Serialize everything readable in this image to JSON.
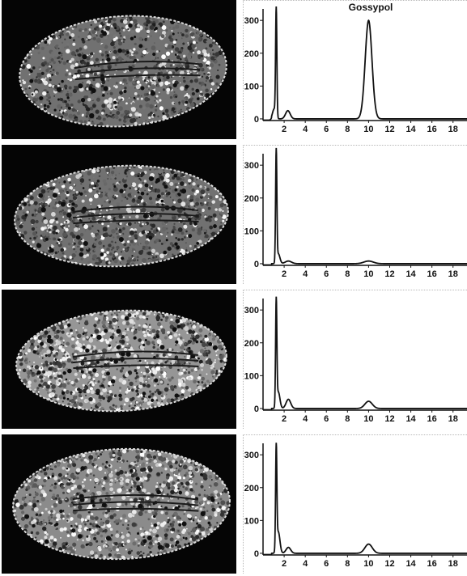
{
  "figure": {
    "colors": {
      "background": "#ffffff",
      "seed_background": "#050505",
      "trace": "#111111",
      "panel_border": "#b8b8b8"
    }
  },
  "chart_data": [
    {
      "type": "line",
      "title": "Gossypol",
      "xlabel": "",
      "ylabel": "",
      "xlim": [
        0,
        19.4
      ],
      "ylim": [
        -10,
        330
      ],
      "x_ticks": [
        2,
        4,
        6,
        8,
        10,
        12,
        14,
        16,
        18
      ],
      "y_ticks": [
        0,
        100,
        200,
        300
      ],
      "grid": false,
      "peaks": [
        {
          "x": 1.25,
          "height": 330,
          "width": 0.06
        },
        {
          "x": 1.05,
          "height": 30,
          "width": 0.15
        },
        {
          "x": 2.35,
          "height": 25,
          "width": 0.22
        },
        {
          "x": 10.0,
          "height": 300,
          "width": 0.32
        }
      ],
      "series": [
        {
          "values_note_free": true
        }
      ]
    },
    {
      "type": "line",
      "title": "",
      "xlabel": "",
      "ylabel": "",
      "xlim": [
        0,
        19.4
      ],
      "ylim": [
        -10,
        330
      ],
      "x_ticks": [
        2,
        4,
        6,
        8,
        10,
        12,
        14,
        16,
        18
      ],
      "y_ticks": [
        0,
        100,
        200,
        300
      ],
      "grid": false,
      "peaks": [
        {
          "x": 1.25,
          "height": 340,
          "width": 0.06
        },
        {
          "x": 1.45,
          "height": 30,
          "width": 0.15
        },
        {
          "x": 2.4,
          "height": 8,
          "width": 0.3
        },
        {
          "x": 10.0,
          "height": 8,
          "width": 0.45
        }
      ]
    },
    {
      "type": "line",
      "title": "",
      "xlabel": "",
      "ylabel": "",
      "xlim": [
        0,
        19.4
      ],
      "ylim": [
        -10,
        330
      ],
      "x_ticks": [
        2,
        4,
        6,
        8,
        10,
        12,
        14,
        16,
        18
      ],
      "y_ticks": [
        0,
        100,
        200,
        300
      ],
      "grid": false,
      "peaks": [
        {
          "x": 1.25,
          "height": 320,
          "width": 0.06
        },
        {
          "x": 1.45,
          "height": 50,
          "width": 0.15
        },
        {
          "x": 2.4,
          "height": 28,
          "width": 0.22
        },
        {
          "x": 10.0,
          "height": 22,
          "width": 0.35
        }
      ]
    },
    {
      "type": "line",
      "title": "",
      "xlabel": "",
      "ylabel": "",
      "xlim": [
        0,
        19.4
      ],
      "ylim": [
        -10,
        330
      ],
      "x_ticks": [
        2,
        4,
        6,
        8,
        10,
        12,
        14,
        16,
        18
      ],
      "y_ticks": [
        0,
        100,
        200,
        300
      ],
      "grid": false,
      "peaks": [
        {
          "x": 1.25,
          "height": 310,
          "width": 0.06
        },
        {
          "x": 1.45,
          "height": 65,
          "width": 0.15
        },
        {
          "x": 2.4,
          "height": 18,
          "width": 0.22
        },
        {
          "x": 10.0,
          "height": 28,
          "width": 0.35
        }
      ]
    }
  ]
}
